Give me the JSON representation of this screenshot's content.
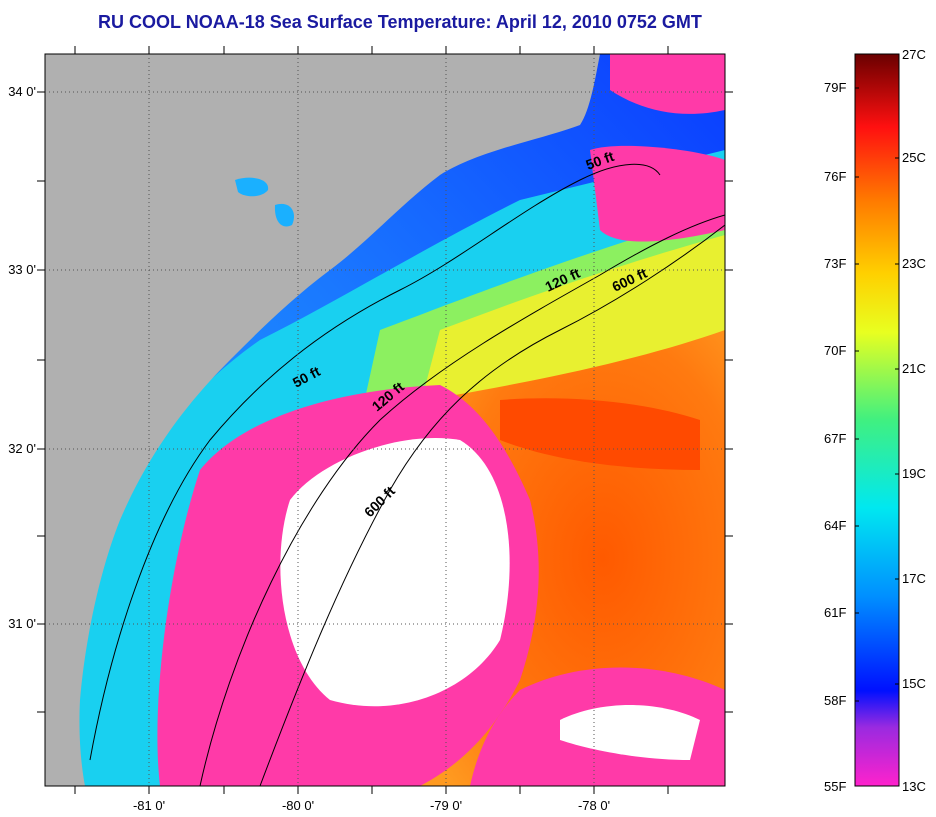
{
  "title": "RU COOL  NOAA-18  Sea Surface Temperature:  April 12, 2010 0752 GMT",
  "latitude_labels": [
    "34 0'",
    "33 0'",
    "32 0'",
    "31 0'"
  ],
  "longitude_labels": [
    "-81 0'",
    "-80 0'",
    "-79 0'",
    "-78 0'"
  ],
  "isobaths": [
    "50 ft",
    "120 ft",
    "600 ft",
    "50 ft",
    "120 ft",
    "600 ft"
  ],
  "colorbar": {
    "fahrenheit": [
      "79F",
      "76F",
      "73F",
      "70F",
      "67F",
      "64F",
      "61F",
      "58F",
      "55F"
    ],
    "celsius": [
      "27C",
      "25C",
      "23C",
      "21C",
      "19C",
      "17C",
      "15C",
      "13C"
    ]
  },
  "colors": {
    "land": "#b0b0b0",
    "cloud": "#ffffff",
    "title": "#1a1aa0"
  }
}
